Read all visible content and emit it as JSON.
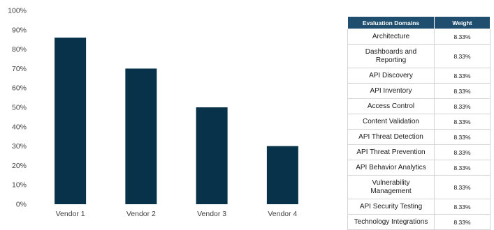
{
  "chart_data": {
    "type": "bar",
    "title": "",
    "xlabel": "",
    "ylabel": "",
    "categories": [
      "Vendor 1",
      "Vendor 2",
      "Vendor 3",
      "Vendor 4"
    ],
    "values": [
      86,
      70,
      50,
      30
    ],
    "ylim": [
      0,
      100
    ],
    "yticks": [
      "0%",
      "10%",
      "20%",
      "30%",
      "40%",
      "50%",
      "60%",
      "70%",
      "80%",
      "90%",
      "100%"
    ],
    "grid": false,
    "bar_color": "#07324a"
  },
  "domains_table": {
    "headers": {
      "domain": "Evaluation Domains",
      "weight": "Weight"
    },
    "header_color": "#1f4e6e",
    "rows": [
      {
        "domain": "Architecture",
        "weight": "8.33%"
      },
      {
        "domain": "Dashboards and Reporting",
        "weight": "8.33%"
      },
      {
        "domain": "API Discovery",
        "weight": "8.33%"
      },
      {
        "domain": "API Inventory",
        "weight": "8.33%"
      },
      {
        "domain": "Access Control",
        "weight": "8.33%"
      },
      {
        "domain": "Content Validation",
        "weight": "8.33%"
      },
      {
        "domain": "API Threat Detection",
        "weight": "8.33%"
      },
      {
        "domain": "API Threat Prevention",
        "weight": "8.33%"
      },
      {
        "domain": "API Behavior Analytics",
        "weight": "8.33%"
      },
      {
        "domain": "Vulnerability Management",
        "weight": "8.33%"
      },
      {
        "domain": "API Security Testing",
        "weight": "8.33%"
      },
      {
        "domain": "Technology Integrations",
        "weight": "8.33%"
      }
    ]
  }
}
